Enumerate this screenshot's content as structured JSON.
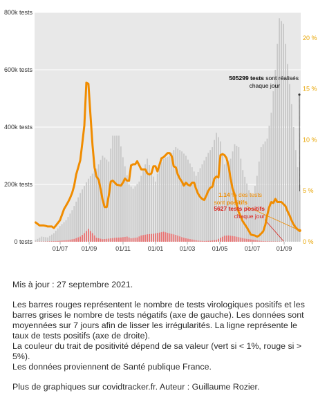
{
  "chart_data": {
    "type": "bar+line",
    "x_tick_labels": [
      "01/07",
      "01/09",
      "01/11",
      "01/01",
      "01/03",
      "01/05",
      "01/07",
      "01/09"
    ],
    "y_left_ticks": [
      "800k tests",
      "600k tests",
      "400k tests",
      "200k tests",
      "0 tests"
    ],
    "y_left_lim": [
      0,
      800000
    ],
    "y_right_ticks": [
      "20 %",
      "15 %",
      "10 %",
      "5 %",
      "0 %"
    ],
    "y_right_lim": [
      0,
      22.5
    ],
    "series": [
      {
        "kind": "bars",
        "color": "#c8c8c8",
        "keys": [
          [
            0,
            6000
          ],
          [
            3,
            18000
          ],
          [
            6,
            15000
          ],
          [
            9,
            30000
          ],
          [
            12,
            55000
          ],
          [
            15,
            75000
          ],
          [
            18,
            110000
          ],
          [
            22,
            170000
          ],
          [
            26,
            220000
          ],
          [
            30,
            255000
          ],
          [
            33,
            300000
          ],
          [
            36,
            280000
          ],
          [
            38,
            370000
          ],
          [
            41,
            370000
          ],
          [
            43,
            295000
          ],
          [
            46,
            200000
          ],
          [
            48,
            185000
          ],
          [
            51,
            210000
          ],
          [
            53,
            250000
          ],
          [
            55,
            290000
          ],
          [
            57,
            245000
          ],
          [
            59,
            210000
          ],
          [
            61,
            265000
          ],
          [
            63,
            290000
          ],
          [
            66,
            300000
          ],
          [
            69,
            330000
          ],
          [
            72,
            315000
          ],
          [
            74,
            300000
          ],
          [
            77,
            260000
          ],
          [
            79,
            230000
          ],
          [
            82,
            270000
          ],
          [
            85,
            310000
          ],
          [
            87,
            330000
          ],
          [
            89,
            380000
          ],
          [
            91,
            350000
          ],
          [
            93,
            270000
          ],
          [
            96,
            290000
          ],
          [
            98,
            340000
          ],
          [
            100,
            330000
          ],
          [
            102,
            250000
          ],
          [
            105,
            180000
          ],
          [
            107,
            160000
          ],
          [
            109,
            230000
          ],
          [
            111,
            330000
          ],
          [
            114,
            360000
          ],
          [
            116,
            450000
          ],
          [
            118,
            600000
          ],
          [
            120,
            780000
          ],
          [
            122,
            760000
          ],
          [
            124,
            620000
          ],
          [
            126,
            480000
          ],
          [
            128,
            320000
          ],
          [
            130,
            200000
          ]
        ]
      },
      {
        "kind": "bars",
        "color": "#e87171",
        "keys": [
          [
            0,
            300
          ],
          [
            10,
            2000
          ],
          [
            16,
            6000
          ],
          [
            19,
            10000
          ],
          [
            22,
            18000
          ],
          [
            24,
            30000
          ],
          [
            26,
            45000
          ],
          [
            28,
            30000
          ],
          [
            30,
            14000
          ],
          [
            33,
            9000
          ],
          [
            36,
            11000
          ],
          [
            39,
            14000
          ],
          [
            42,
            15000
          ],
          [
            45,
            18000
          ],
          [
            47,
            12000
          ],
          [
            50,
            15000
          ],
          [
            52,
            22000
          ],
          [
            55,
            26000
          ],
          [
            58,
            28000
          ],
          [
            61,
            32000
          ],
          [
            63,
            35000
          ],
          [
            66,
            29000
          ],
          [
            69,
            24000
          ],
          [
            72,
            16000
          ],
          [
            74,
            12000
          ],
          [
            77,
            8000
          ],
          [
            80,
            4000
          ],
          [
            83,
            2500
          ],
          [
            86,
            3500
          ],
          [
            89,
            6500
          ],
          [
            91,
            14000
          ],
          [
            93,
            21000
          ],
          [
            95,
            22000
          ],
          [
            98,
            19000
          ],
          [
            100,
            16000
          ],
          [
            103,
            11000
          ],
          [
            106,
            8000
          ],
          [
            108,
            6000
          ],
          [
            110,
            3800
          ],
          [
            112,
            2500
          ],
          [
            114,
            1800
          ],
          [
            116,
            1300
          ],
          [
            118,
            1000
          ],
          [
            120,
            900
          ],
          [
            122,
            600
          ]
        ]
      },
      {
        "kind": "line",
        "color": "#f08c00",
        "keys": [
          [
            0,
            1.9
          ],
          [
            2,
            1.6
          ],
          [
            4,
            1.6
          ],
          [
            6,
            1.5
          ],
          [
            8,
            1.5
          ],
          [
            9,
            1.35
          ],
          [
            10,
            1.6
          ],
          [
            12,
            2.1
          ],
          [
            14,
            3.2
          ],
          [
            16,
            3.9
          ],
          [
            17,
            4.3
          ],
          [
            18,
            4.8
          ],
          [
            19,
            5.5
          ],
          [
            20,
            6.6
          ],
          [
            22,
            8.0
          ],
          [
            24,
            11.4
          ],
          [
            25,
            15.6
          ],
          [
            26,
            15.5
          ],
          [
            27,
            12.5
          ],
          [
            28,
            9.5
          ],
          [
            29,
            7.3
          ],
          [
            30,
            6.4
          ],
          [
            31,
            6.1
          ],
          [
            32,
            5.2
          ],
          [
            33,
            4.1
          ],
          [
            34,
            3.4
          ],
          [
            35,
            3.4
          ],
          [
            36,
            4.5
          ],
          [
            37,
            5.9
          ],
          [
            38,
            6.0
          ],
          [
            39,
            5.8
          ],
          [
            40,
            5.6
          ],
          [
            42,
            5.5
          ],
          [
            43,
            5.8
          ],
          [
            44,
            6.2
          ],
          [
            45,
            6.0
          ],
          [
            46,
            6.0
          ],
          [
            47,
            7.5
          ],
          [
            48,
            7.6
          ],
          [
            49,
            7.6
          ],
          [
            50,
            7.9
          ],
          [
            51,
            7.5
          ],
          [
            52,
            7.1
          ],
          [
            54,
            7.1
          ],
          [
            55,
            6.7
          ],
          [
            56,
            6.6
          ],
          [
            57,
            6.7
          ],
          [
            58,
            7.4
          ],
          [
            59,
            7.4
          ],
          [
            60,
            6.9
          ],
          [
            62,
            8.2
          ],
          [
            63,
            8.3
          ],
          [
            64,
            8.5
          ],
          [
            65,
            8.7
          ],
          [
            66,
            8.7
          ],
          [
            67,
            8.4
          ],
          [
            68,
            7.4
          ],
          [
            69,
            7.3
          ],
          [
            70,
            6.6
          ],
          [
            71,
            6.2
          ],
          [
            72,
            5.9
          ],
          [
            73,
            5.5
          ],
          [
            74,
            5.8
          ],
          [
            75,
            5.6
          ],
          [
            76,
            5.5
          ],
          [
            77,
            5.8
          ],
          [
            78,
            5.8
          ],
          [
            79,
            5.2
          ],
          [
            80,
            4.7
          ],
          [
            81,
            4.4
          ],
          [
            82,
            4.2
          ],
          [
            83,
            4.1
          ],
          [
            84,
            4.5
          ],
          [
            85,
            5.0
          ],
          [
            86,
            5.3
          ],
          [
            87,
            5.4
          ],
          [
            88,
            6.2
          ],
          [
            89,
            6.4
          ],
          [
            90,
            6.3
          ],
          [
            91,
            8.5
          ],
          [
            92,
            8.6
          ],
          [
            93,
            8.5
          ],
          [
            94,
            8.2
          ],
          [
            95,
            7.4
          ],
          [
            96,
            6.2
          ],
          [
            97,
            5.2
          ],
          [
            98,
            4.6
          ],
          [
            99,
            3.6
          ],
          [
            100,
            2.9
          ],
          [
            102,
            2.0
          ],
          [
            104,
            1.4
          ],
          [
            106,
            0.7
          ],
          [
            108,
            0.6
          ],
          [
            109,
            0.5
          ],
          [
            110,
            0.6
          ],
          [
            111,
            0.8
          ],
          [
            112,
            1.0
          ],
          [
            113,
            1.6
          ],
          [
            114,
            2.6
          ],
          [
            115,
            3.4
          ],
          [
            116,
            3.9
          ],
          [
            117,
            3.8
          ],
          [
            118,
            4.2
          ],
          [
            119,
            3.9
          ],
          [
            120,
            3.9
          ],
          [
            121,
            3.9
          ],
          [
            122,
            3.7
          ],
          [
            123,
            3.5
          ],
          [
            124,
            3.0
          ],
          [
            125,
            2.6
          ],
          [
            126,
            2.1
          ],
          [
            127,
            1.7
          ],
          [
            128,
            1.4
          ],
          [
            129,
            1.2
          ],
          [
            130,
            1.1
          ]
        ]
      }
    ],
    "annotations": [
      {
        "bold": "505299 tests",
        "text_1": " sont réalisés",
        "text_2": "chaque jour",
        "color": "#333333"
      },
      {
        "bold": "1.14 %",
        "text_1": " des tests",
        "text_2": "sont ",
        "bold_2": "positifs",
        "color": "#f08c00"
      },
      {
        "bold": "5627 tests positifs",
        "text_2": "chaque jour",
        "color": "#d91e18"
      }
    ],
    "grid": true,
    "plot_background": "#e8e8e8"
  },
  "caption": {
    "updated": "Mis à jour : 27 septembre 2021.",
    "desc_1": "Les barres rouges représentent le nombre de tests virologiques positifs et les barres grises le nombre de tests négatifs (axe de gauche). Les données sont moyennées sur 7 jours afin de lisser les irrégularités. La ligne représente le taux de tests positifs (axe de droite).",
    "desc_2": "La couleur du trait de positivité dépend de sa valeur (vert si < 1%, rouge si > 5%).",
    "desc_3": "Les données proviennent de Santé publique France.",
    "credits": "Plus de graphiques sur covidtracker.fr. Auteur : Guillaume Rozier."
  }
}
